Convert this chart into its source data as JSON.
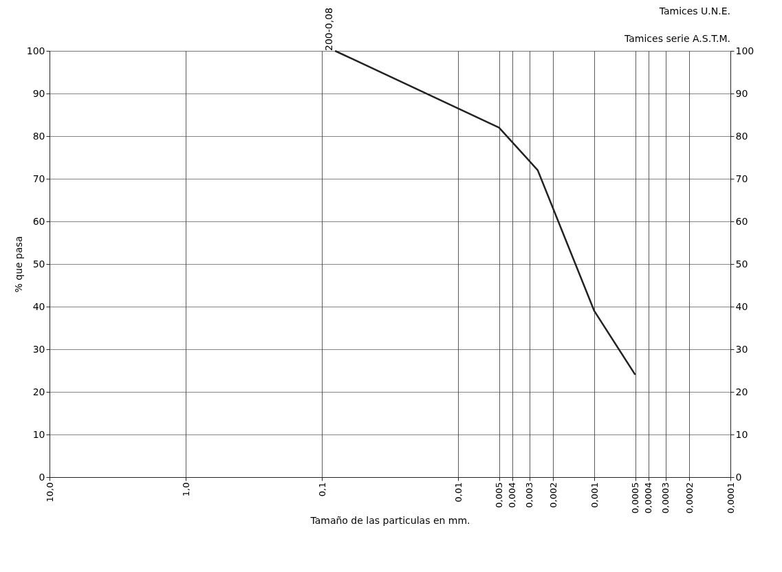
{
  "chart_data": {
    "type": "line",
    "xlabel": "Tamaño de las particulas en mm.",
    "ylabel": "% que pasa",
    "x": [
      0.08,
      0.005,
      0.0026,
      0.001,
      0.0005
    ],
    "series": [
      {
        "color": "#222222",
        "values": [
          100,
          82,
          72,
          39,
          24
        ]
      }
    ],
    "log": "x",
    "xlim": [
      10,
      0.0001
    ],
    "xticks": [
      {
        "value": 10,
        "label": "10,0"
      },
      {
        "value": 1,
        "label": "1,0"
      },
      {
        "value": 0.1,
        "label": "0,1"
      },
      {
        "value": 0.01,
        "label": "0,01"
      },
      {
        "value": 0.005,
        "label": "0,005"
      },
      {
        "value": 0.004,
        "label": "0,004"
      },
      {
        "value": 0.003,
        "label": "0,003"
      },
      {
        "value": 0.002,
        "label": "0,002"
      },
      {
        "value": 0.001,
        "label": "0,001"
      },
      {
        "value": 0.0005,
        "label": "0,0005"
      },
      {
        "value": 0.0004,
        "label": "0,0004"
      },
      {
        "value": 0.0003,
        "label": "0,0003"
      },
      {
        "value": 0.0002,
        "label": "0,0002"
      },
      {
        "value": 0.0001,
        "label": "0,0001"
      }
    ],
    "ylim": [
      0,
      100
    ],
    "yticks": [
      0,
      10,
      20,
      30,
      40,
      50,
      60,
      70,
      80,
      90,
      100
    ],
    "y2lim": [
      0,
      100
    ],
    "y2ticks": [
      0,
      10,
      20,
      30,
      40,
      50,
      60,
      70,
      80,
      90,
      100
    ],
    "grid": true,
    "marker": "none",
    "line_style": "solid",
    "annotations": [
      {
        "text": "200-0,08",
        "x": 0.08,
        "y": 100
      },
      "Tamices U.N.E.",
      "Tamices serie A.S.T.M."
    ]
  }
}
